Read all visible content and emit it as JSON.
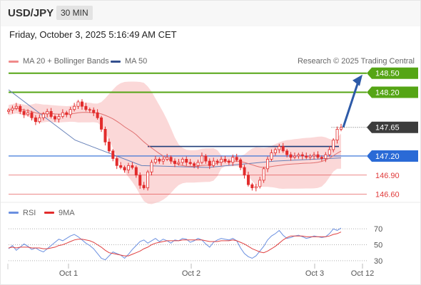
{
  "header": {
    "symbol": "USD/JPY",
    "timeframe": "30 MIN"
  },
  "timestamp": "Friday, October 3, 2025 5:16:49 AM CET",
  "price_legend": {
    "ma20_label": "MA 20 + Bollinger Bands",
    "ma50_label": "MA 50",
    "credit": "Research © 2025 Trading Central"
  },
  "rsi_legend": {
    "rsi_label": "RSI",
    "ma_label": "9MA"
  },
  "colors": {
    "bollinger": "#f7b8b8",
    "ma20": "#e07070",
    "ma50": "#6680b8",
    "candles": "#e22c2c",
    "target": "#55a515",
    "current": "#3c3c3c",
    "pivot": "#2a6ad6",
    "support": "#e03a3a",
    "rsi": "#6a8fe0",
    "rsi_ma": "#e04040",
    "arrow": "#2d5aa8"
  },
  "icons": [
    "candlestick-series",
    "up-arrow-icon"
  ],
  "chart_data": [
    {
      "type": "candlestick",
      "instrument": "USD/JPY",
      "interval": "30 MIN",
      "ylim": [
        146.45,
        148.62
      ],
      "x_ticks": [
        "Oct 1",
        "Oct 2",
        "Oct 3",
        "Oct 12"
      ],
      "levels": [
        {
          "value": 148.5,
          "label": "148.50",
          "kind": "target"
        },
        {
          "value": 148.2,
          "label": "148.20",
          "kind": "target"
        },
        {
          "value": 147.65,
          "label": "147.65",
          "kind": "current"
        },
        {
          "value": 147.2,
          "label": "147.20",
          "kind": "pivot"
        },
        {
          "value": 146.9,
          "label": "146.90",
          "kind": "support"
        },
        {
          "value": 146.6,
          "label": "146.60",
          "kind": "support"
        }
      ],
      "close_series": [
        147.92,
        147.95,
        147.98,
        147.9,
        147.85,
        147.88,
        147.8,
        147.74,
        147.8,
        147.86,
        147.9,
        147.82,
        147.78,
        147.82,
        147.88,
        147.85,
        147.93,
        147.98,
        148.05,
        147.98,
        147.93,
        147.92,
        147.88,
        147.8,
        147.62,
        147.42,
        147.28,
        147.16,
        147.05,
        147.02,
        146.98,
        147.05,
        147.02,
        146.9,
        146.74,
        146.7,
        146.95,
        147.1,
        147.15,
        147.12,
        147.15,
        147.18,
        147.12,
        147.08,
        147.1,
        147.15,
        147.1,
        147.08,
        147.05,
        147.1,
        147.2,
        147.12,
        147.05,
        147.12,
        147.1,
        147.15,
        147.12,
        147.1,
        147.18,
        147.14,
        147.02,
        146.9,
        146.75,
        146.7,
        146.72,
        146.82,
        147.0,
        147.15,
        147.25,
        147.3,
        147.35,
        147.28,
        147.22,
        147.18,
        147.2,
        147.22,
        147.2,
        147.18,
        147.2,
        147.22,
        147.18,
        147.16,
        147.22,
        147.3,
        147.45,
        147.62,
        147.65
      ],
      "ma50_series": [
        148.24,
        147.45,
        147.05,
        147.02,
        147.12,
        147.17
      ],
      "forecast_arrow": {
        "from": 147.65,
        "to": 148.5
      }
    },
    {
      "type": "line",
      "title": "RSI",
      "series": [
        {
          "name": "RSI",
          "values": [
            45,
            49,
            43,
            47,
            51,
            48,
            44,
            46,
            43,
            41,
            45,
            49,
            53,
            57,
            55,
            58,
            61,
            63,
            60,
            56,
            52,
            49,
            45,
            39,
            33,
            31,
            36,
            41,
            39,
            37,
            33,
            38,
            44,
            49,
            54,
            56,
            52,
            55,
            58,
            54,
            57,
            55,
            52,
            56,
            55,
            58,
            57,
            53,
            55,
            58,
            56,
            51,
            47,
            53,
            56,
            58,
            57,
            56,
            58,
            55,
            46,
            39,
            35,
            33,
            36,
            42,
            48,
            56,
            61,
            64,
            68,
            62,
            58,
            59,
            61,
            62,
            60,
            58,
            59,
            61,
            60,
            59,
            60,
            64,
            70,
            68,
            71
          ]
        },
        {
          "name": "9MA",
          "values": [
            46,
            47,
            46,
            47,
            47,
            47,
            46,
            46,
            46,
            45,
            45,
            46,
            47,
            49,
            50,
            52,
            54,
            56,
            57,
            57,
            56,
            55,
            53,
            50,
            47,
            43,
            40,
            39,
            38,
            37,
            36,
            36,
            38,
            40,
            42,
            45,
            47,
            50,
            52,
            53,
            54,
            55,
            55,
            55,
            55,
            56,
            56,
            56,
            56,
            56,
            56,
            55,
            54,
            54,
            54,
            55,
            55,
            55,
            56,
            55,
            53,
            51,
            48,
            45,
            43,
            41,
            40,
            42,
            45,
            48,
            52,
            56,
            59,
            61,
            61,
            61,
            61,
            60,
            60,
            60,
            60,
            60,
            60,
            61,
            63,
            64,
            66
          ]
        }
      ],
      "ylim": [
        20,
        80
      ],
      "y_ticks": [
        70,
        50,
        30
      ]
    }
  ]
}
